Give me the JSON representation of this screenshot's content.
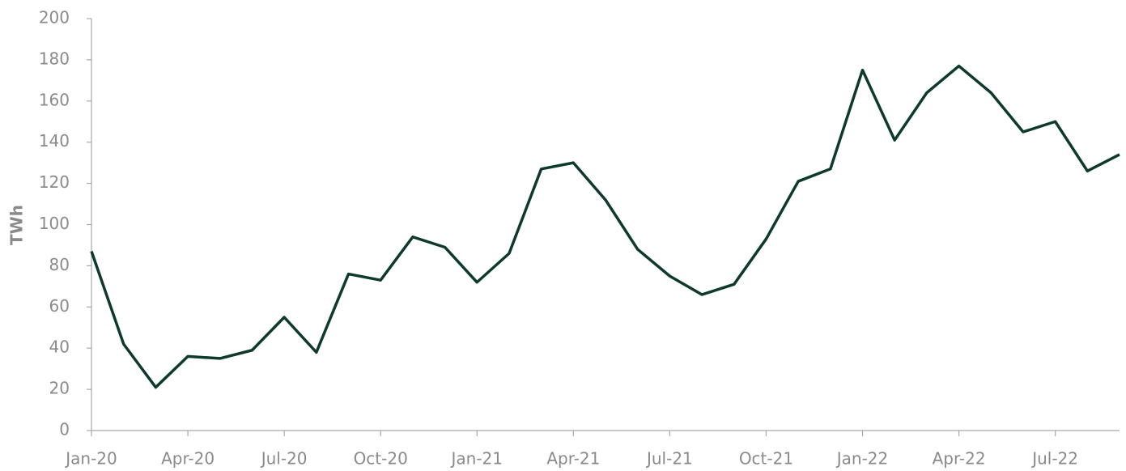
{
  "chart_data": {
    "type": "line",
    "y_label": "TWh",
    "categories": [
      "Jan-20",
      null,
      null,
      "Apr-20",
      null,
      null,
      "Jul-20",
      null,
      null,
      "Oct-20",
      null,
      null,
      "Jan-21",
      null,
      null,
      "Apr-21",
      null,
      null,
      "Jul-21",
      null,
      null,
      "Oct-21",
      null,
      null,
      "Jan-22",
      null,
      null,
      "Apr-22",
      null,
      null,
      "Jul-22",
      null,
      null
    ],
    "values": [
      87,
      42,
      21,
      36,
      35,
      39,
      55,
      38,
      76,
      73,
      94,
      89,
      72,
      86,
      127,
      130,
      112,
      88,
      75,
      66,
      71,
      93,
      121,
      127,
      175,
      141,
      164,
      177,
      164,
      145,
      150,
      126,
      134
    ],
    "color": "#0e3a2c",
    "ylim": [
      0,
      200
    ],
    "yticks": [
      0,
      20,
      40,
      60,
      80,
      100,
      120,
      140,
      160,
      180,
      200
    ],
    "grid": false
  }
}
